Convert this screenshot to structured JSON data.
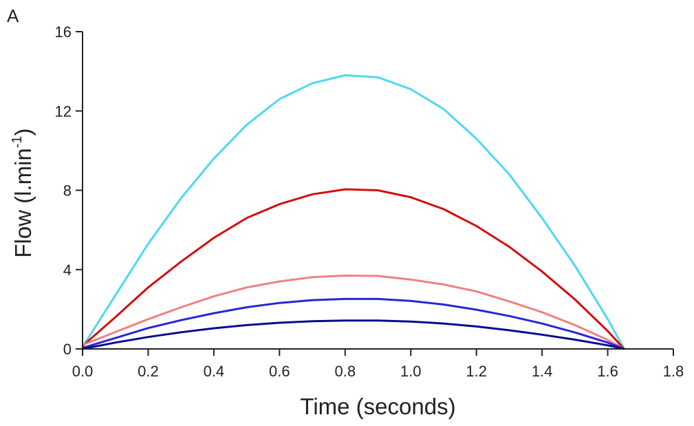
{
  "panel_label": "A",
  "chart_data": {
    "type": "line",
    "title": "",
    "xlabel": "Time (seconds)",
    "ylabel": "Flow (l.min",
    "ylabel_superscript": "-1",
    "ylabel_close": ")",
    "xlim": [
      0,
      1.8
    ],
    "ylim": [
      0,
      16
    ],
    "x_ticks": [
      0.0,
      0.2,
      0.4,
      0.6,
      0.8,
      1.0,
      1.2,
      1.4,
      1.6,
      1.8
    ],
    "x_tick_labels": [
      "0.0",
      "0.2",
      "0.4",
      "0.6",
      "0.8",
      "1.0",
      "1.2",
      "1.4",
      "1.6",
      "1.8"
    ],
    "y_ticks": [
      0,
      4,
      8,
      12,
      16
    ],
    "y_tick_labels": [
      "0",
      "4",
      "8",
      "12",
      "16"
    ],
    "grid": false,
    "legend": "none",
    "series": [
      {
        "color": "#4dd8f5",
        "x": [
          0.0,
          0.1,
          0.2,
          0.3,
          0.4,
          0.5,
          0.6,
          0.7,
          0.8,
          0.9,
          1.0,
          1.1,
          1.2,
          1.3,
          1.4,
          1.5,
          1.6,
          1.65
        ],
        "values": [
          0.1,
          2.7,
          5.3,
          7.6,
          9.6,
          11.3,
          12.6,
          13.4,
          13.8,
          13.7,
          13.1,
          12.1,
          10.6,
          8.8,
          6.6,
          4.2,
          1.5,
          0.0
        ]
      },
      {
        "color": "#d40c0c",
        "x": [
          0.0,
          0.1,
          0.2,
          0.3,
          0.4,
          0.5,
          0.6,
          0.7,
          0.8,
          0.9,
          1.0,
          1.1,
          1.2,
          1.3,
          1.4,
          1.5,
          1.6,
          1.65
        ],
        "values": [
          0.15,
          1.6,
          3.1,
          4.4,
          5.6,
          6.6,
          7.3,
          7.8,
          8.05,
          8.0,
          7.65,
          7.05,
          6.2,
          5.15,
          3.9,
          2.5,
          0.9,
          0.0
        ]
      },
      {
        "color": "#f08080",
        "x": [
          0.0,
          0.1,
          0.2,
          0.3,
          0.4,
          0.5,
          0.6,
          0.7,
          0.8,
          0.9,
          1.0,
          1.1,
          1.2,
          1.3,
          1.4,
          1.5,
          1.6,
          1.65
        ],
        "values": [
          0.2,
          0.85,
          1.5,
          2.1,
          2.65,
          3.1,
          3.4,
          3.62,
          3.7,
          3.68,
          3.5,
          3.25,
          2.9,
          2.4,
          1.85,
          1.2,
          0.45,
          0.0
        ]
      },
      {
        "color": "#2626d9",
        "x": [
          0.0,
          0.1,
          0.2,
          0.3,
          0.4,
          0.5,
          0.6,
          0.7,
          0.8,
          0.9,
          1.0,
          1.1,
          1.2,
          1.3,
          1.4,
          1.5,
          1.6,
          1.65
        ],
        "values": [
          0.05,
          0.55,
          1.05,
          1.45,
          1.8,
          2.1,
          2.32,
          2.46,
          2.52,
          2.52,
          2.42,
          2.24,
          1.98,
          1.66,
          1.28,
          0.83,
          0.32,
          0.0
        ]
      },
      {
        "color": "#0a0a8c",
        "x": [
          0.0,
          0.1,
          0.2,
          0.3,
          0.4,
          0.5,
          0.6,
          0.7,
          0.8,
          0.9,
          1.0,
          1.1,
          1.2,
          1.3,
          1.4,
          1.5,
          1.6,
          1.65
        ],
        "values": [
          0.0,
          0.32,
          0.6,
          0.84,
          1.04,
          1.2,
          1.32,
          1.4,
          1.43,
          1.43,
          1.38,
          1.28,
          1.13,
          0.94,
          0.72,
          0.47,
          0.18,
          0.0
        ]
      }
    ]
  }
}
